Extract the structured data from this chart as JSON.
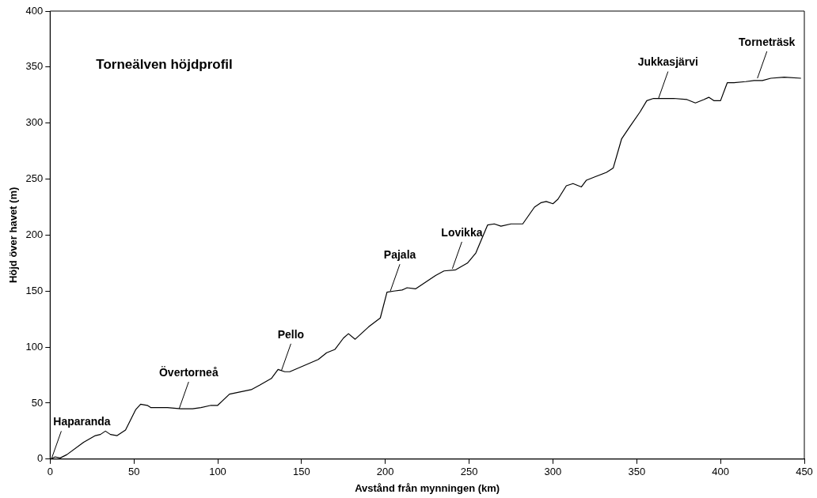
{
  "chart_data": {
    "type": "line",
    "title": "Torneälven höjdprofil",
    "xlabel": "Avstånd från mynningen (km)",
    "ylabel": "Höjd över havet (m)",
    "x": [
      0,
      3,
      6,
      10,
      20,
      27,
      30,
      33,
      36,
      40,
      45,
      48,
      51,
      54,
      58,
      60,
      70,
      78,
      85,
      90,
      96,
      100,
      107,
      120,
      125,
      132,
      136,
      140,
      143,
      160,
      165,
      170,
      175,
      178,
      182,
      190,
      197,
      201,
      205,
      210,
      213,
      218,
      230,
      235,
      242,
      249,
      254,
      261,
      265,
      269,
      275,
      282,
      289,
      293,
      296,
      300,
      303,
      308,
      312,
      317,
      320,
      325,
      332,
      336,
      341,
      346,
      352,
      356,
      360,
      365,
      372,
      380,
      385,
      390,
      393,
      396,
      400,
      404,
      408,
      415,
      420,
      425,
      430,
      438,
      448
    ],
    "series": [
      {
        "color": "#000000",
        "values": [
          0,
          2,
          1,
          4,
          15,
          21,
          22,
          25,
          22,
          21,
          26,
          35,
          44,
          49,
          48,
          46,
          46,
          45,
          45,
          46,
          48,
          48,
          58,
          62,
          66,
          72,
          80,
          78,
          78,
          89,
          95,
          98,
          108,
          112,
          107,
          118,
          126,
          149,
          150,
          151,
          153,
          152,
          164,
          168,
          169,
          175,
          184,
          209,
          210,
          208,
          210,
          210,
          225,
          229,
          230,
          228,
          232,
          244,
          246,
          243,
          249,
          252,
          256,
          260,
          286,
          297,
          310,
          320,
          322,
          322,
          322,
          321,
          318,
          321,
          323,
          320,
          320,
          336,
          336,
          337,
          338,
          338,
          340,
          341,
          340
        ]
      }
    ],
    "xlim": [
      0,
      450
    ],
    "xticks": [
      0,
      50,
      100,
      150,
      200,
      250,
      300,
      350,
      400,
      450
    ],
    "ylim": [
      0,
      400
    ],
    "yticks": [
      0,
      50,
      100,
      150,
      200,
      250,
      300,
      350,
      400
    ],
    "grid": false,
    "legend": false,
    "marker": "none",
    "line_style": "solid",
    "annotations": [
      {
        "text": "Haparanda",
        "x": 1,
        "y": 1
      },
      {
        "text": "Övertorneå",
        "x": 77,
        "y": 45
      },
      {
        "text": "Pello",
        "x": 138,
        "y": 79
      },
      {
        "text": "Pajala",
        "x": 203,
        "y": 150
      },
      {
        "text": "Lovikka",
        "x": 240,
        "y": 170
      },
      {
        "text": "Jukkasjärvi",
        "x": 363,
        "y": 322
      },
      {
        "text": "Torneträsk",
        "x": 422,
        "y": 340
      }
    ]
  }
}
